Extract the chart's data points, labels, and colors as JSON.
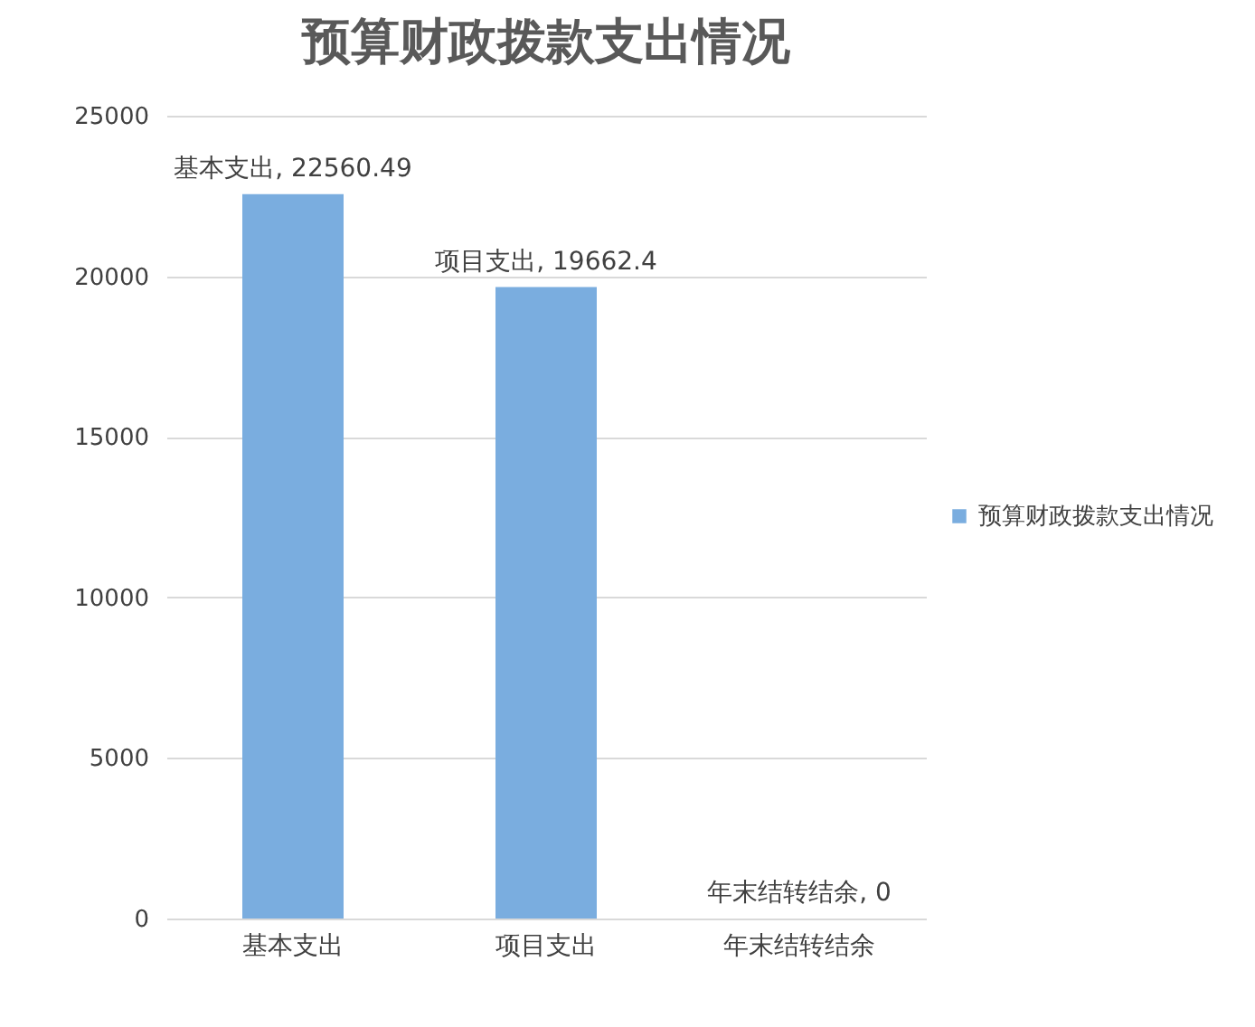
{
  "chart_data": {
    "type": "bar",
    "title": "预算财政拨款支出情况",
    "categories": [
      "基本支出",
      "项目支出",
      "年末结转结余"
    ],
    "series": [
      {
        "name": "预算财政拨款支出情况",
        "color": "#7aaddf",
        "values": [
          22560.49,
          19662.4,
          0
        ],
        "value_labels": [
          "基本支出, 22560.49",
          "项目支出, 19662.4",
          "年末结转结余, 0"
        ]
      }
    ],
    "ylim": [
      0,
      25000
    ],
    "yticks": [
      0,
      5000,
      10000,
      15000,
      20000,
      25000
    ],
    "grid": "y",
    "legend": "right"
  }
}
